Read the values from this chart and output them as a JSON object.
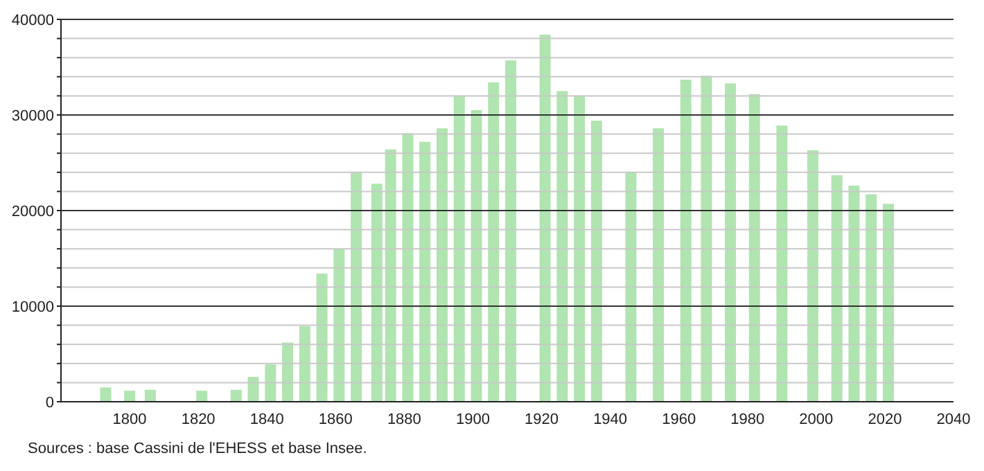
{
  "chart_data": {
    "type": "bar",
    "x": [
      1793,
      1800,
      1806,
      1821,
      1831,
      1836,
      1841,
      1846,
      1851,
      1856,
      1861,
      1866,
      1872,
      1876,
      1881,
      1886,
      1891,
      1896,
      1901,
      1906,
      1911,
      1921,
      1926,
      1931,
      1936,
      1946,
      1954,
      1962,
      1968,
      1975,
      1982,
      1990,
      1999,
      2006,
      2011,
      2016,
      2021
    ],
    "values": [
      1500,
      1150,
      1250,
      1150,
      1250,
      2600,
      3900,
      6200,
      7900,
      13400,
      16000,
      24000,
      22800,
      26400,
      28100,
      27200,
      28600,
      32000,
      30500,
      33400,
      35700,
      38400,
      32500,
      32000,
      29400,
      24000,
      28600,
      33700,
      34100,
      33300,
      32200,
      28900,
      26300,
      23700,
      22600,
      21700,
      20700
    ],
    "color": "#b0e4b0",
    "xlim": [
      1780,
      2040
    ],
    "xticks": [
      1800,
      1820,
      1840,
      1860,
      1880,
      1900,
      1920,
      1940,
      1960,
      1980,
      2000,
      2020,
      2040
    ],
    "ylim": [
      0,
      40000
    ],
    "yticks": [
      0,
      {
        "value": 2000,
        "label": null
      },
      {
        "value": 4000,
        "label": null
      },
      {
        "value": 6000,
        "label": null
      },
      {
        "value": 8000,
        "label": null
      },
      10000,
      {
        "value": 12000,
        "label": null
      },
      {
        "value": 14000,
        "label": null
      },
      {
        "value": 16000,
        "label": null
      },
      {
        "value": 18000,
        "label": null
      },
      20000,
      {
        "value": 22000,
        "label": null
      },
      {
        "value": 24000,
        "label": null
      },
      {
        "value": 26000,
        "label": null
      },
      {
        "value": 28000,
        "label": null
      },
      30000,
      {
        "value": 32000,
        "label": null
      },
      {
        "value": 34000,
        "label": null
      },
      {
        "value": 36000,
        "label": null
      },
      {
        "value": 38000,
        "label": null
      },
      40000
    ],
    "grid": "y",
    "annotations": [
      "Sources : base Cassini de l'EHESS et base Insee."
    ]
  }
}
